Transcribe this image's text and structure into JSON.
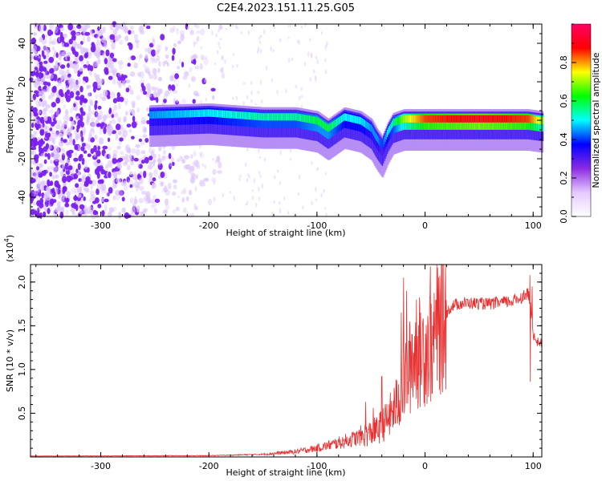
{
  "title": "C2E4.2023.151.11.25.G05",
  "chart_data": [
    {
      "type": "heatmap",
      "xlabel": "Height of straight line (km)",
      "ylabel": "Frequency (Hz)",
      "xlim": [
        -365,
        108
      ],
      "ylim": [
        -50,
        50
      ],
      "xticks": [
        -300,
        -200,
        -100,
        0,
        100
      ],
      "yticks": [
        -40,
        -20,
        0,
        20,
        40
      ],
      "colorbar": {
        "label": "Normalized spectral amplitude",
        "range": [
          0,
          1
        ],
        "ticks": [
          "0.0",
          "0.2",
          "0.4",
          "0.6",
          "0.8"
        ],
        "colors": [
          "#ffffff",
          "#e6c8ff",
          "#8a2be2",
          "#0000ff",
          "#00ffff",
          "#00ff00",
          "#ffff00",
          "#ff0000",
          "#ff0066"
        ]
      },
      "ridge": {
        "x": [
          -255,
          -200,
          -150,
          -120,
          -100,
          -90,
          -75,
          -60,
          -50,
          -45,
          -40,
          -35,
          -30,
          -20,
          0,
          50,
          95,
          108
        ],
        "freq": [
          4,
          5,
          3,
          3,
          1,
          -3,
          3,
          1,
          -3,
          -8,
          -12,
          -5,
          0,
          2,
          2,
          2,
          2,
          1
        ],
        "amp": [
          0.45,
          0.5,
          0.55,
          0.55,
          0.6,
          0.6,
          0.5,
          0.5,
          0.45,
          0.45,
          0.4,
          0.5,
          0.55,
          0.7,
          0.85,
          0.9,
          0.85,
          0.7
        ]
      }
    },
    {
      "type": "line",
      "xlabel": "Height of straight line (km)",
      "ylabel": "SNR (10 * v/v)",
      "ylabel_scale": "(x10",
      "ylabel_exponent": "4",
      "ylabel_close": ")",
      "xlim": [
        -365,
        108
      ],
      "ylim": [
        0,
        22000
      ],
      "xticks": [
        -300,
        -200,
        -100,
        0,
        100
      ],
      "yticks": [
        5000,
        10000,
        15000,
        20000
      ],
      "ytick_labels": [
        "0.5",
        "1.0",
        "1.5",
        "2.0"
      ],
      "color": "#e83030",
      "envelope": {
        "x": [
          -365,
          -200,
          -150,
          -120,
          -100,
          -80,
          -60,
          -45,
          -35,
          -25,
          -20,
          -15,
          -10,
          -5,
          0,
          5,
          10,
          15,
          20,
          25,
          30,
          40,
          60,
          80,
          90,
          95,
          98,
          100,
          103,
          108
        ],
        "y": [
          100,
          150,
          300,
          600,
          1000,
          1600,
          2300,
          3000,
          4200,
          6300,
          8500,
          10000,
          11500,
          12000,
          12500,
          13000,
          14500,
          15500,
          16500,
          17300,
          17500,
          17600,
          17500,
          17800,
          18300,
          18800,
          17000,
          14000,
          13200,
          13000
        ]
      },
      "spikes": [
        {
          "x": -22,
          "y": 16500
        },
        {
          "x": -20,
          "y": 20500
        },
        {
          "x": -17,
          "y": 19000
        },
        {
          "x": -12,
          "y": 14000
        },
        {
          "x": -8,
          "y": 18000
        },
        {
          "x": -4,
          "y": 16500
        },
        {
          "x": 5,
          "y": 21800
        },
        {
          "x": 7,
          "y": 15000
        },
        {
          "x": 12,
          "y": 18700
        },
        {
          "x": 97,
          "y": 20800
        },
        {
          "x": 99,
          "y": 19500
        },
        {
          "x": 97.5,
          "y": 8600
        },
        {
          "x": -40,
          "y": 9200
        },
        {
          "x": -55,
          "y": 6300
        },
        {
          "x": -48,
          "y": 5600
        }
      ]
    }
  ]
}
